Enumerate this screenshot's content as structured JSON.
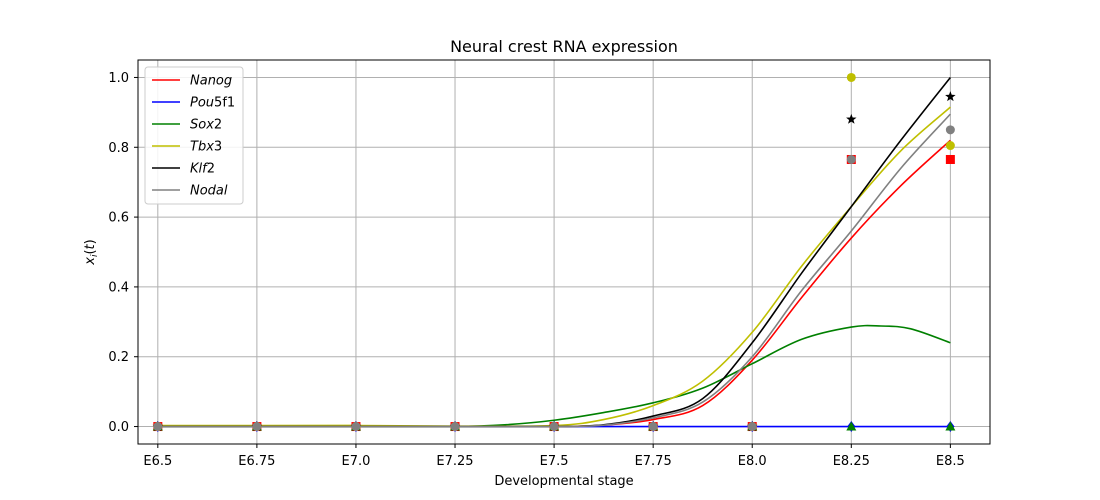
{
  "chart_data": {
    "type": "line",
    "title": "Neural crest RNA expression",
    "xlabel": "Developmental stage",
    "ylabel": "x_i(t)",
    "categories": [
      "E6.5",
      "E6.75",
      "E7.0",
      "E7.25",
      "E7.5",
      "E7.75",
      "E8.0",
      "E8.25",
      "E8.5"
    ],
    "yticks": [
      "0.0",
      "0.2",
      "0.4",
      "0.6",
      "0.8",
      "1.0"
    ],
    "ylim": [
      -0.05,
      1.05
    ],
    "grid": true,
    "legend_position": "top-left",
    "series": [
      {
        "name": "Nanog",
        "label_italic": "Nanog",
        "label_upright": "",
        "color": "#ff0000",
        "marker": "square",
        "curve": [
          [
            0,
            0
          ],
          [
            1,
            0
          ],
          [
            2,
            0
          ],
          [
            3,
            0
          ],
          [
            4,
            0
          ],
          [
            4.5,
            0.004
          ],
          [
            5,
            0.02
          ],
          [
            5.5,
            0.06
          ],
          [
            6,
            0.19
          ],
          [
            6.5,
            0.37
          ],
          [
            7,
            0.54
          ],
          [
            7.5,
            0.69
          ],
          [
            8,
            0.82
          ]
        ],
        "points": [
          [
            0,
            0
          ],
          [
            1,
            0
          ],
          [
            2,
            0
          ],
          [
            3,
            0
          ],
          [
            4,
            0
          ],
          [
            5,
            0
          ],
          [
            6,
            0
          ],
          [
            7,
            0.765
          ],
          [
            8,
            0.765
          ]
        ]
      },
      {
        "name": "Pou5f1",
        "label_italic": "Pou",
        "label_upright": "5f1",
        "color": "#0000ff",
        "marker": "diamond",
        "curve": [
          [
            0,
            0
          ],
          [
            8,
            0
          ]
        ],
        "points": [
          [
            0,
            0
          ],
          [
            1,
            0
          ],
          [
            2,
            0
          ],
          [
            3,
            0
          ],
          [
            4,
            0
          ],
          [
            5,
            0
          ],
          [
            6,
            0
          ],
          [
            7,
            0
          ],
          [
            8,
            0
          ]
        ]
      },
      {
        "name": "Sox2",
        "label_italic": "Sox",
        "label_upright": "2",
        "color": "#008000",
        "marker": "triangle",
        "curve": [
          [
            0,
            0
          ],
          [
            2,
            0
          ],
          [
            3,
            0
          ],
          [
            3.5,
            0.005
          ],
          [
            4,
            0.018
          ],
          [
            4.5,
            0.04
          ],
          [
            5,
            0.068
          ],
          [
            5.5,
            0.11
          ],
          [
            6,
            0.18
          ],
          [
            6.5,
            0.25
          ],
          [
            7,
            0.285
          ],
          [
            7.3,
            0.288
          ],
          [
            7.6,
            0.28
          ],
          [
            8,
            0.24
          ]
        ],
        "points": [
          [
            0,
            0
          ],
          [
            1,
            0
          ],
          [
            2,
            0
          ],
          [
            3,
            0
          ],
          [
            4,
            0
          ],
          [
            5,
            0
          ],
          [
            6,
            0
          ],
          [
            7,
            0
          ],
          [
            8,
            0
          ]
        ]
      },
      {
        "name": "Tbx3",
        "label_italic": "Tbx",
        "label_upright": "3",
        "color": "#bfbf00",
        "marker": "circle",
        "curve": [
          [
            0,
            0.003
          ],
          [
            1,
            0.003
          ],
          [
            2,
            0.003
          ],
          [
            3,
            0.001
          ],
          [
            4,
            0.003
          ],
          [
            4.5,
            0.02
          ],
          [
            5,
            0.06
          ],
          [
            5.5,
            0.13
          ],
          [
            6,
            0.27
          ],
          [
            6.5,
            0.46
          ],
          [
            7,
            0.63
          ],
          [
            7.5,
            0.79
          ],
          [
            8,
            0.915
          ]
        ],
        "points": [
          [
            0,
            0
          ],
          [
            1,
            0
          ],
          [
            2,
            0
          ],
          [
            3,
            0
          ],
          [
            4,
            0
          ],
          [
            5,
            0
          ],
          [
            6,
            0
          ],
          [
            7,
            1.0
          ],
          [
            8,
            0.805
          ]
        ]
      },
      {
        "name": "Klf2",
        "label_italic": "Klf",
        "label_upright": "2",
        "color": "#000000",
        "marker": "star",
        "curve": [
          [
            0,
            0
          ],
          [
            1,
            0
          ],
          [
            2,
            0
          ],
          [
            3,
            0
          ],
          [
            4,
            0
          ],
          [
            4.5,
            0.005
          ],
          [
            5,
            0.03
          ],
          [
            5.5,
            0.08
          ],
          [
            6,
            0.24
          ],
          [
            6.5,
            0.44
          ],
          [
            7,
            0.63
          ],
          [
            7.5,
            0.82
          ],
          [
            8,
            1.0
          ]
        ],
        "points": [
          [
            0,
            0
          ],
          [
            1,
            0
          ],
          [
            2,
            0
          ],
          [
            3,
            0
          ],
          [
            4,
            0
          ],
          [
            5,
            0
          ],
          [
            6,
            0
          ],
          [
            7,
            0.88
          ],
          [
            8,
            0.945
          ]
        ]
      },
      {
        "name": "Nodal",
        "label_italic": "Nodal",
        "label_upright": "",
        "color": "#808080",
        "marker": "circle",
        "curve": [
          [
            0,
            0
          ],
          [
            1,
            0
          ],
          [
            2,
            0
          ],
          [
            3,
            0
          ],
          [
            4,
            0
          ],
          [
            4.5,
            0.004
          ],
          [
            5,
            0.025
          ],
          [
            5.5,
            0.07
          ],
          [
            6,
            0.2
          ],
          [
            6.5,
            0.39
          ],
          [
            7,
            0.56
          ],
          [
            7.5,
            0.74
          ],
          [
            8,
            0.895
          ]
        ],
        "points": [
          [
            0,
            0
          ],
          [
            1,
            0
          ],
          [
            2,
            0
          ],
          [
            3,
            0
          ],
          [
            4,
            0
          ],
          [
            5,
            0
          ],
          [
            6,
            0
          ],
          [
            7,
            0.765
          ],
          [
            8,
            0.85
          ]
        ]
      }
    ]
  }
}
